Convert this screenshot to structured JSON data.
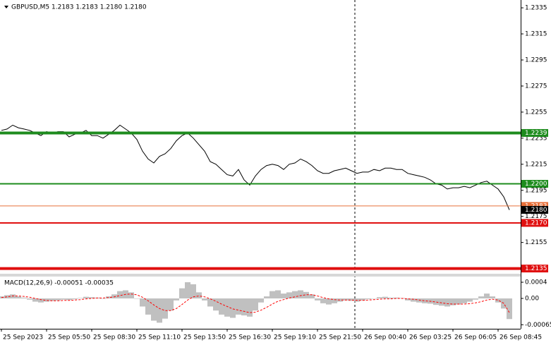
{
  "chart_data": [
    {
      "type": "line",
      "title": "GBPUSD,M5  1.2183 1.2183 1.2180 1.2180",
      "color": "#000000",
      "xlim": [
        -0.25,
        92
      ],
      "ylim": [
        1.2131,
        1.2341
      ],
      "yticks": [
        1.2335,
        1.2315,
        1.2295,
        1.2275,
        1.2255,
        1.2235,
        1.2215,
        1.2195,
        1.2175,
        1.2155
      ],
      "values": [
        1.2241,
        1.2242,
        1.2245,
        1.2243,
        1.2242,
        1.2241,
        1.2239,
        1.2237,
        1.224,
        1.2239,
        1.224,
        1.224,
        1.2236,
        1.2238,
        1.2239,
        1.2241,
        1.2237,
        1.2237,
        1.2235,
        1.2238,
        1.2241,
        1.2245,
        1.2242,
        1.2239,
        1.2234,
        1.2225,
        1.2219,
        1.2216,
        1.2221,
        1.2223,
        1.2227,
        1.2233,
        1.2237,
        1.2239,
        1.2235,
        1.223,
        1.2225,
        1.2217,
        1.2215,
        1.2211,
        1.2207,
        1.2206,
        1.2211,
        1.2203,
        1.2199,
        1.2206,
        1.2211,
        1.2214,
        1.2215,
        1.2214,
        1.2211,
        1.2215,
        1.2216,
        1.2219,
        1.2217,
        1.2214,
        1.221,
        1.2208,
        1.2208,
        1.221,
        1.2211,
        1.2212,
        1.221,
        1.2208,
        1.2209,
        1.2209,
        1.2211,
        1.221,
        1.2212,
        1.2212,
        1.2211,
        1.2211,
        1.2208,
        1.2207,
        1.2206,
        1.2205,
        1.2203,
        1.22,
        1.2199,
        1.2196,
        1.2197,
        1.2197,
        1.2198,
        1.2197,
        1.2199,
        1.2201,
        1.2202,
        1.2199,
        1.2196,
        1.219,
        1.218
      ],
      "levels": [
        {
          "value": 1.2239,
          "color": "#1e8c1e",
          "width": 4
        },
        {
          "value": 1.22,
          "label": "1.2200",
          "color": "#1e8c1e",
          "width": 2
        },
        {
          "value": 1.2183,
          "color": "#e8703a",
          "width": 1
        },
        {
          "value": 1.218,
          "label": "1.2180",
          "color": "#000000",
          "width": 0
        },
        {
          "value": 1.217,
          "label": "1.2170",
          "color": "#e01010",
          "width": 2
        },
        {
          "value": 1.2135,
          "color": "#e01010",
          "width": 4
        }
      ]
    },
    {
      "type": "macd",
      "title": "MACD(12,26,9) -0.00051 -0.00035",
      "color": "#c0c0c0",
      "signal_color": "#ff0000",
      "xlim": [
        -0.25,
        92
      ],
      "ylim": [
        -0.00075,
        0.00054
      ],
      "yticks": [
        0.0004,
        {
          "value": 0,
          "label": "0.00"
        },
        -0.00065
      ],
      "xticks": [
        {
          "value": 0,
          "label": "25 Sep 2023"
        },
        {
          "value": 8,
          "label": "25 Sep 05:50"
        },
        {
          "value": 16,
          "label": "25 Sep 08:30"
        },
        {
          "value": 24,
          "label": "25 Sep 11:10"
        },
        {
          "value": 32,
          "label": "25 Sep 13:50"
        },
        {
          "value": 40,
          "label": "25 Sep 16:30"
        },
        {
          "value": 48,
          "label": "25 Sep 19:10"
        },
        {
          "value": 56,
          "label": "25 Sep 21:50"
        },
        {
          "value": 64,
          "label": "26 Sep 00:40"
        },
        {
          "value": 72,
          "label": "26 Sep 03:25"
        },
        {
          "value": 80,
          "label": "26 Sep 06:05"
        },
        {
          "value": 88,
          "label": "26 Sep 08:45"
        }
      ],
      "values": [
        5e-05,
        8e-05,
        0.0001,
        5e-05,
        2e-05,
        -3e-05,
        -8e-05,
        -0.0001,
        -8e-05,
        -6e-05,
        -5e-05,
        -3e-05,
        -4e-05,
        -2e-05,
        1e-05,
        4e-05,
        3e-05,
        2e-05,
        0.0,
        5e-05,
        0.0001,
        0.00018,
        0.0002,
        0.00015,
        0.0,
        -0.0002,
        -0.0004,
        -0.00055,
        -0.0006,
        -0.0005,
        -0.0003,
        -5e-05,
        0.00025,
        0.0004,
        0.00035,
        0.00015,
        -5e-05,
        -0.0002,
        -0.0003,
        -0.0004,
        -0.00045,
        -0.00048,
        -0.0004,
        -0.00042,
        -0.00045,
        -0.0003,
        -0.0001,
        5e-05,
        0.00018,
        0.0002,
        0.00012,
        0.00015,
        0.00018,
        0.0002,
        0.00016,
        0.0001,
        -5e-05,
        -0.00012,
        -0.00015,
        -0.00012,
        -8e-05,
        -5e-05,
        -6e-05,
        -8e-05,
        -5e-05,
        -2e-05,
        0.0,
        3e-05,
        4e-05,
        2e-05,
        2e-05,
        1e-05,
        -5e-05,
        -8e-05,
        -0.0001,
        -0.00012,
        -0.00013,
        -0.00016,
        -0.00018,
        -0.0002,
        -0.00017,
        -0.00015,
        -0.00012,
        -8e-05,
        -3e-05,
        5e-05,
        0.00012,
        5e-05,
        -0.0001,
        -0.00025,
        -0.00051
      ],
      "signal": [
        2e-05,
        4e-05,
        6e-05,
        6e-05,
        5e-05,
        3e-05,
        0.0,
        -3e-05,
        -5e-05,
        -6e-05,
        -6e-05,
        -5e-05,
        -5e-05,
        -4e-05,
        -3e-05,
        -1e-05,
        0.0,
        1e-05,
        1e-05,
        2e-05,
        4e-05,
        7e-05,
        0.0001,
        0.00011,
        9e-05,
        3e-05,
        -6e-05,
        -0.00016,
        -0.00025,
        -0.0003,
        -0.0003,
        -0.00025,
        -0.00015,
        -4e-05,
        4e-05,
        6e-05,
        4e-05,
        -1e-05,
        -7e-05,
        -0.00014,
        -0.0002,
        -0.00026,
        -0.00029,
        -0.00032,
        -0.00035,
        -0.00034,
        -0.00029,
        -0.00022,
        -0.00014,
        -7e-05,
        -3e-05,
        1e-05,
        4e-05,
        7e-05,
        9e-05,
        9e-05,
        6e-05,
        2e-05,
        -1e-05,
        -3e-05,
        -4e-05,
        -4e-05,
        -4e-05,
        -5e-05,
        -5e-05,
        -4e-05,
        -3e-05,
        -2e-05,
        -1e-05,
        -1e-05,
        0.0,
        0.0,
        -1e-05,
        -2e-05,
        -4e-05,
        -6e-05,
        -7e-05,
        -9e-05,
        -0.00011,
        -0.00013,
        -0.00014,
        -0.00014,
        -0.00014,
        -0.00013,
        -0.00011,
        -8e-05,
        -4e-05,
        -2e-05,
        -4e-05,
        -0.00012,
        -0.00035
      ]
    }
  ]
}
